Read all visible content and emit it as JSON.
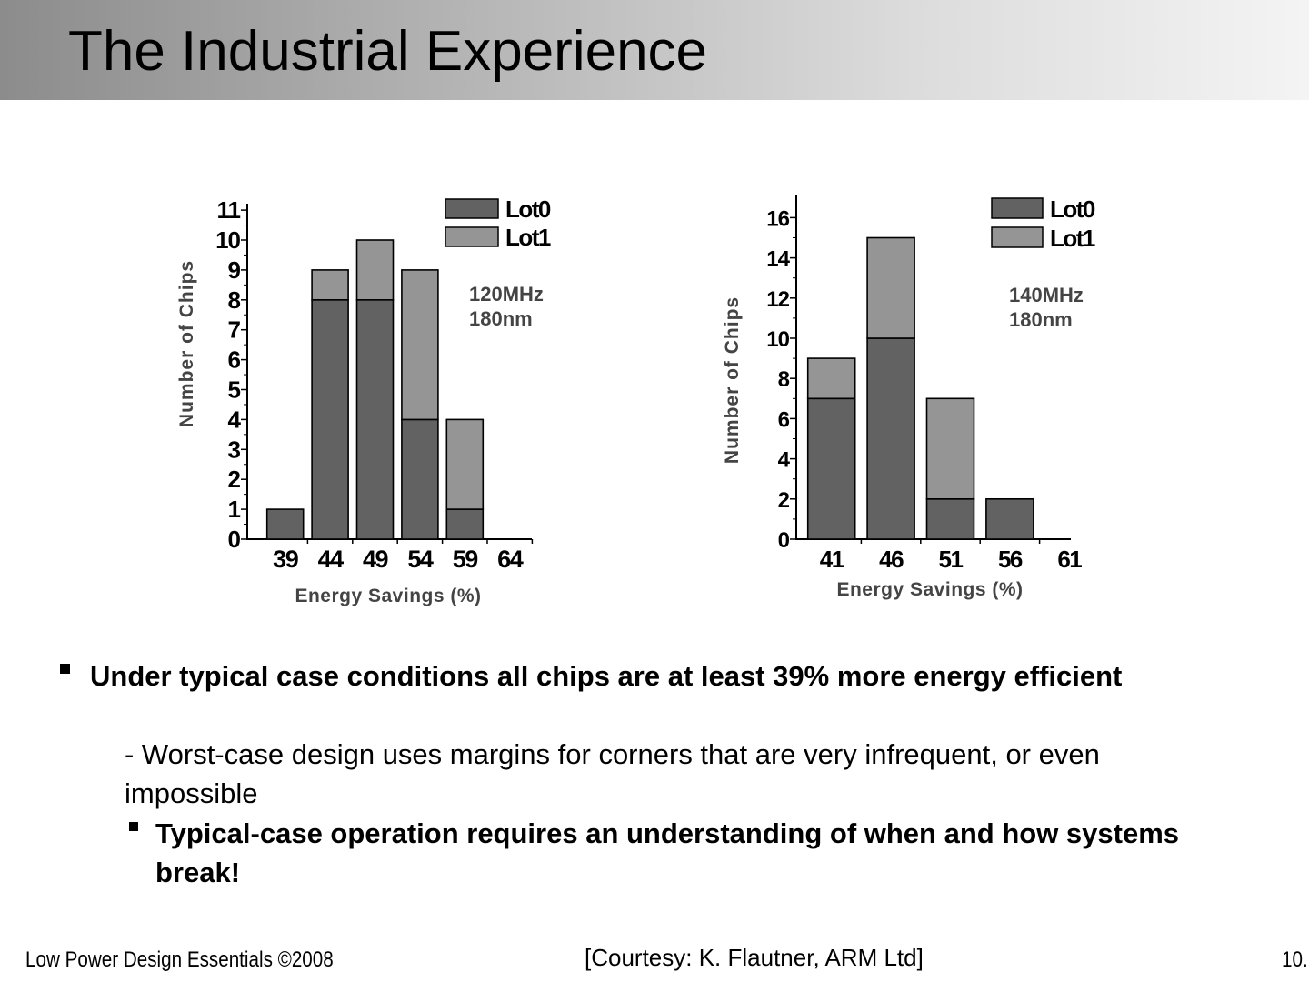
{
  "slide": {
    "title": "The Industrial Experience",
    "bullets": [
      {
        "level": 1,
        "text": "Under typical case conditions all chips are at least 39% more energy efficient"
      },
      {
        "level": 2,
        "text": "- Worst-case design uses margins for corners that are very infrequent, or even impossible"
      },
      {
        "level": 2,
        "text": "Typical-case operation requires an understanding of when and how systems break!"
      }
    ],
    "footer_left": "Low Power Design Essentials ©2008",
    "footer_center": "[Courtesy: K. Flautner, ARM Ltd]",
    "page_number": "10."
  },
  "chart_data": [
    {
      "type": "bar",
      "stacked": true,
      "annotation": [
        "120MHz",
        "180nm"
      ],
      "xlabel": "Energy Savings (%)",
      "ylabel": "Number of Chips",
      "x_ticks": [
        "39",
        "44",
        "49",
        "54",
        "59",
        "64"
      ],
      "categories": [
        "39",
        "44",
        "49",
        "54",
        "59"
      ],
      "y_ticks": [
        0,
        1,
        2,
        3,
        4,
        5,
        6,
        7,
        8,
        9,
        10,
        11
      ],
      "ylim": [
        0,
        11
      ],
      "legend": "top-right",
      "series": [
        {
          "name": "Lot0",
          "color": "#626262",
          "values": [
            1,
            8,
            8,
            4,
            1
          ]
        },
        {
          "name": "Lot1",
          "color": "#959595",
          "values": [
            0,
            1,
            2,
            5,
            3
          ]
        }
      ]
    },
    {
      "type": "bar",
      "stacked": true,
      "annotation": [
        "140MHz",
        "180nm"
      ],
      "xlabel": "Energy Savings (%)",
      "ylabel": "Number of Chips",
      "x_ticks": [
        "41",
        "46",
        "51",
        "56",
        "61"
      ],
      "categories": [
        "41",
        "46",
        "51",
        "56"
      ],
      "y_ticks": [
        0,
        2,
        4,
        6,
        8,
        10,
        12,
        14,
        16
      ],
      "ylim": [
        0,
        17
      ],
      "legend": "top-right",
      "series": [
        {
          "name": "Lot0",
          "color": "#626262",
          "values": [
            7,
            10,
            2,
            2
          ]
        },
        {
          "name": "Lot1",
          "color": "#959595",
          "values": [
            2,
            5,
            5,
            0
          ]
        }
      ]
    }
  ]
}
